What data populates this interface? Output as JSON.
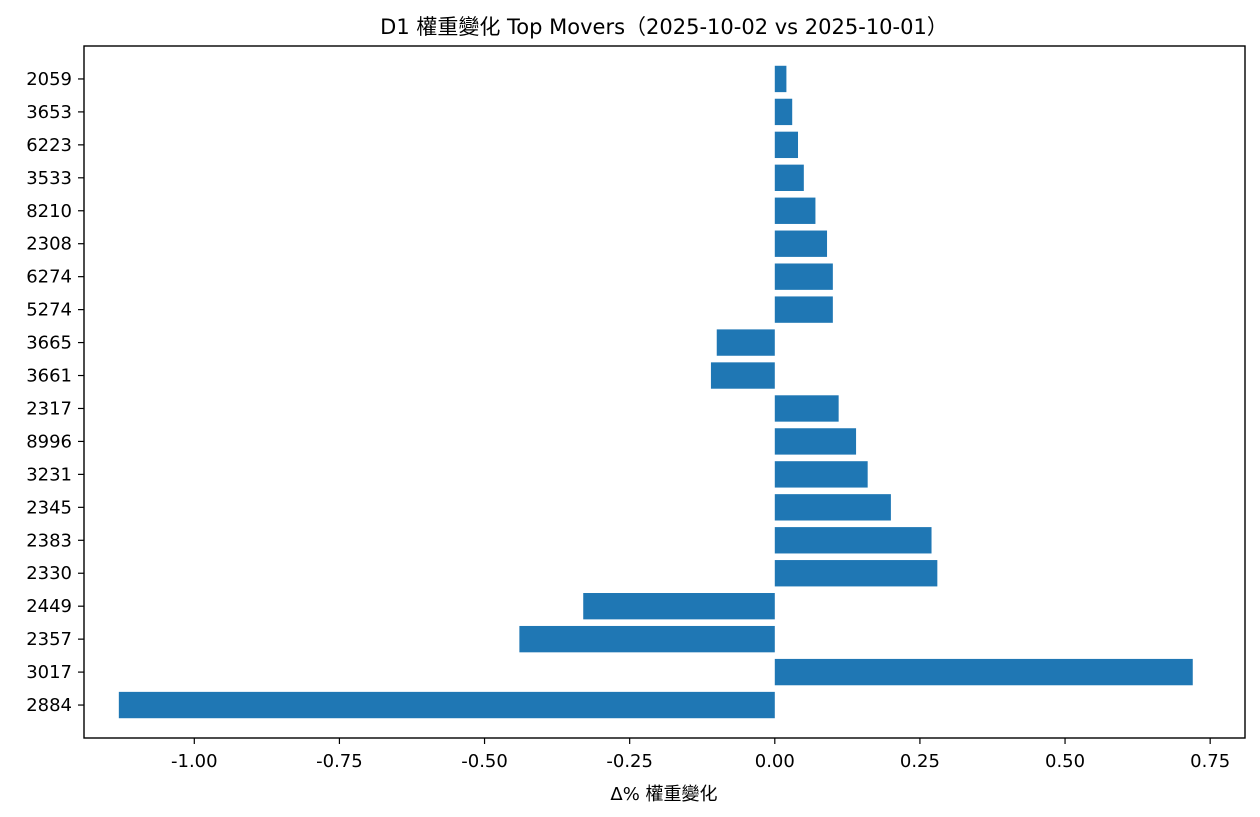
{
  "chart_data": {
    "type": "bar",
    "orientation": "horizontal",
    "title": "D1 權重變化 Top Movers（2025-10-02 vs 2025-10-01）",
    "xlabel": "Δ% 權重變化",
    "ylabel": "",
    "xlim": [
      -1.19,
      0.81
    ],
    "grid": false,
    "bar_color": "#1f77b4",
    "categories": [
      "2884",
      "3017",
      "2357",
      "2449",
      "2330",
      "2383",
      "2345",
      "3231",
      "8996",
      "2317",
      "3661",
      "3665",
      "5274",
      "6274",
      "2308",
      "8210",
      "3533",
      "6223",
      "3653",
      "2059"
    ],
    "values": [
      -1.13,
      0.72,
      -0.44,
      -0.33,
      0.28,
      0.27,
      0.2,
      0.16,
      0.14,
      0.11,
      -0.11,
      -0.1,
      0.1,
      0.1,
      0.09,
      0.07,
      0.05,
      0.04,
      0.03,
      0.02
    ],
    "x_ticks": [
      -1.0,
      -0.75,
      -0.5,
      -0.25,
      0.0,
      0.25,
      0.5,
      0.75
    ],
    "x_tick_labels": [
      "-1.00",
      "-0.75",
      "-0.50",
      "-0.25",
      "0.00",
      "0.25",
      "0.50",
      "0.75"
    ]
  }
}
